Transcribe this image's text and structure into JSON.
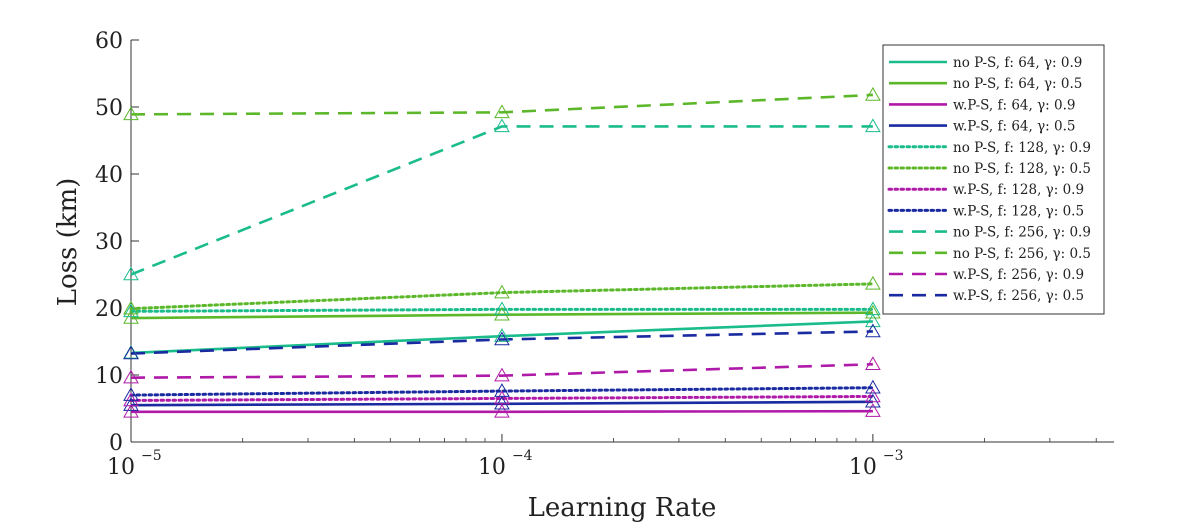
{
  "chart_data": {
    "type": "line",
    "title": "",
    "xlabel": "Learning Rate",
    "ylabel": "Loss (km)",
    "xscale": "log",
    "x": [
      1e-05,
      0.0001,
      0.001
    ],
    "xlim_exp": [
      -5,
      -2.35
    ],
    "ylim": [
      0,
      60
    ],
    "yticks": [
      0,
      10,
      20,
      30,
      40,
      50,
      60
    ],
    "xticks": [
      {
        "exp": -5,
        "base": "10",
        "power": "−5"
      },
      {
        "exp": -4,
        "base": "10",
        "power": "−4"
      },
      {
        "exp": -3,
        "base": "10",
        "power": "−3"
      }
    ],
    "marker": "triangle",
    "legend_position": "top-right",
    "series": [
      {
        "name": "no P-S, f: 64, γ: 0.9",
        "color": "#1abc8c",
        "style": "solid",
        "values": [
          13.3,
          15.8,
          18.0
        ]
      },
      {
        "name": "no P-S, f: 64, γ: 0.5",
        "color": "#5cb82a",
        "style": "solid",
        "values": [
          18.5,
          19.0,
          19.3
        ]
      },
      {
        "name": "w.P-S, f: 64, γ: 0.9",
        "color": "#b01aa8",
        "style": "solid",
        "values": [
          4.5,
          4.5,
          4.6
        ]
      },
      {
        "name": "w.P-S, f: 64, γ: 0.5",
        "color": "#1a2aa0",
        "style": "solid",
        "values": [
          5.5,
          5.7,
          6.0
        ]
      },
      {
        "name": "no P-S, f: 128, γ: 0.9",
        "color": "#1abc8c",
        "style": "dotted",
        "values": [
          19.5,
          19.8,
          19.8
        ]
      },
      {
        "name": "no P-S, f: 128, γ: 0.5",
        "color": "#5cb82a",
        "style": "dotted",
        "values": [
          19.9,
          22.3,
          23.6
        ]
      },
      {
        "name": "w.P-S, f: 128, γ: 0.9",
        "color": "#b01aa8",
        "style": "dotted",
        "values": [
          6.2,
          6.5,
          6.8
        ]
      },
      {
        "name": "w.P-S, f: 128, γ: 0.5",
        "color": "#1a2aa0",
        "style": "dotted",
        "values": [
          7.0,
          7.6,
          8.1
        ]
      },
      {
        "name": "no P-S, f: 256, γ: 0.9",
        "color": "#1abc8c",
        "style": "dashed",
        "values": [
          25.0,
          47.1,
          47.1
        ]
      },
      {
        "name": "no P-S, f: 256, γ: 0.5",
        "color": "#5cb82a",
        "style": "dashed",
        "values": [
          48.9,
          49.2,
          51.8
        ]
      },
      {
        "name": "w.P-S, f: 256, γ: 0.9",
        "color": "#b01aa8",
        "style": "dashed",
        "values": [
          9.6,
          9.9,
          11.6
        ]
      },
      {
        "name": "w.P-S, f: 256, γ: 0.5",
        "color": "#1a2aa0",
        "style": "dashed",
        "values": [
          13.2,
          15.3,
          16.5
        ]
      }
    ]
  }
}
